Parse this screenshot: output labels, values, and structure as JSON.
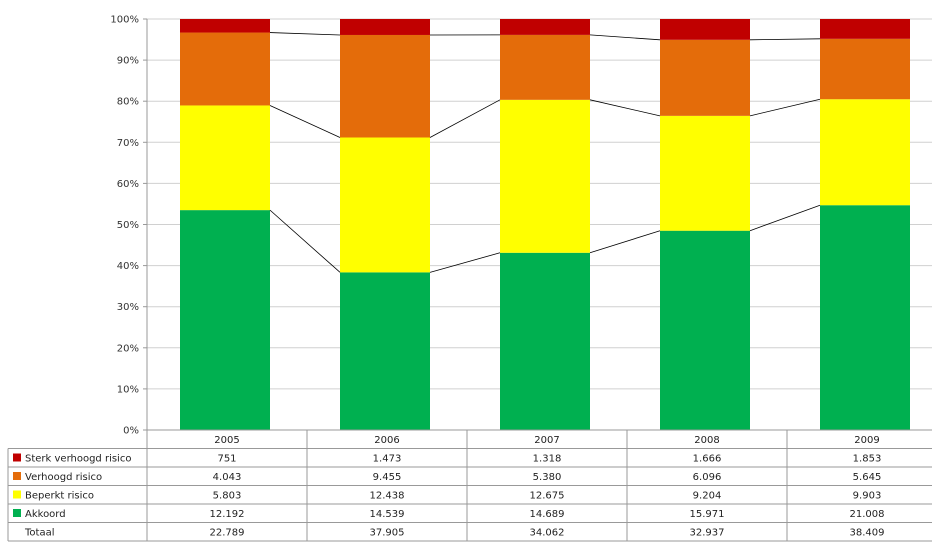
{
  "chart_data": {
    "type": "bar",
    "stacked": "percent",
    "categories": [
      "2005",
      "2006",
      "2007",
      "2008",
      "2009"
    ],
    "series": [
      {
        "name": "Sterk verhoogd risico",
        "color": "#c00000",
        "values": [
          751,
          1473,
          1318,
          1666,
          1853
        ],
        "labels": [
          "751",
          "1.473",
          "1.318",
          "1.666",
          "1.853"
        ]
      },
      {
        "name": "Verhoogd risico",
        "color": "#e46c0a",
        "values": [
          4043,
          9455,
          5380,
          6096,
          5645
        ],
        "labels": [
          "4.043",
          "9.455",
          "5.380",
          "6.096",
          "5.645"
        ]
      },
      {
        "name": "Beperkt risico",
        "color": "#ffff00",
        "values": [
          5803,
          12438,
          12675,
          9204,
          9903
        ],
        "labels": [
          "5.803",
          "12.438",
          "12.675",
          "9.204",
          "9.903"
        ]
      },
      {
        "name": "Akkoord",
        "color": "#00b050",
        "values": [
          12192,
          14539,
          14689,
          15971,
          21008
        ],
        "labels": [
          "12.192",
          "14.539",
          "14.689",
          "15.971",
          "21.008"
        ]
      }
    ],
    "totals": {
      "name": "Totaal",
      "values": [
        22789,
        37905,
        34062,
        32937,
        38409
      ],
      "labels": [
        "22.789",
        "37.905",
        "34.062",
        "32.937",
        "38.409"
      ]
    },
    "yticks": [
      "0%",
      "10%",
      "20%",
      "30%",
      "40%",
      "50%",
      "60%",
      "70%",
      "80%",
      "90%",
      "100%"
    ],
    "ylim": [
      0,
      100
    ],
    "grid": true,
    "series_lines": true,
    "legend": "data-table"
  }
}
